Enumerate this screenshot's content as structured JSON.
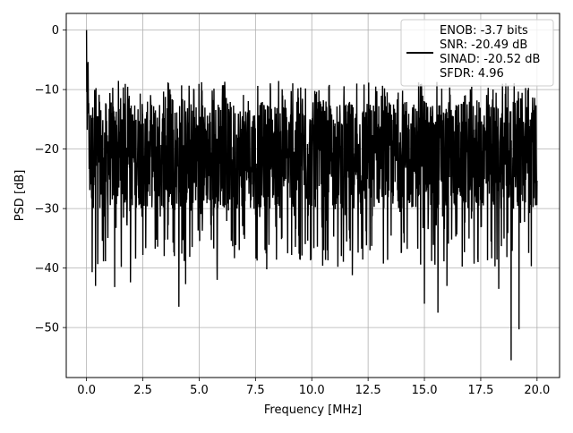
{
  "chart_data": {
    "type": "line",
    "xlabel": "Frequency [MHz]",
    "ylabel": "PSD [dB]",
    "xlim": [
      -0.9,
      21.0
    ],
    "ylim": [
      -58.4,
      2.8
    ],
    "x_ticks": [
      0.0,
      2.5,
      5.0,
      7.5,
      10.0,
      12.5,
      15.0,
      17.5,
      20.0
    ],
    "x_tick_labels": [
      "0.0",
      "2.5",
      "5.0",
      "7.5",
      "10.0",
      "12.5",
      "15.0",
      "17.5",
      "20.0"
    ],
    "y_ticks": [
      0,
      -10,
      -20,
      -30,
      -40,
      -50
    ],
    "y_tick_labels": [
      "0",
      "−10",
      "−20",
      "−30",
      "−40",
      "−50"
    ],
    "grid": true,
    "legend_position": "top-right",
    "legend_lines": [
      "ENOB: -3.7 bits",
      "SNR: -20.49 dB",
      "SINAD: -20.52 dB",
      "SFDR: 4.96"
    ],
    "line_color": "#000000",
    "series": [
      {
        "x_range": [
          0.0,
          20.0
        ],
        "n_points": 2048,
        "peak": {
          "x": 0.0,
          "y": 0.0
        },
        "upper_envelope_y": -8.5,
        "typical_range_y": [
          -30,
          -12
        ],
        "deep_minima": [
          {
            "x": 0.25,
            "y": -40.7
          },
          {
            "x": 0.4,
            "y": -43.0
          },
          {
            "x": 1.25,
            "y": -43.2
          },
          {
            "x": 1.95,
            "y": -42.4
          },
          {
            "x": 4.1,
            "y": -46.5
          },
          {
            "x": 4.4,
            "y": -42.7
          },
          {
            "x": 5.8,
            "y": -42.0
          },
          {
            "x": 8.0,
            "y": -40.2
          },
          {
            "x": 11.8,
            "y": -41.2
          },
          {
            "x": 15.0,
            "y": -46.0
          },
          {
            "x": 15.6,
            "y": -47.5
          },
          {
            "x": 16.0,
            "y": -43.0
          },
          {
            "x": 18.3,
            "y": -43.5
          },
          {
            "x": 18.85,
            "y": -55.5
          },
          {
            "x": 19.2,
            "y": -50.3
          }
        ]
      }
    ]
  }
}
